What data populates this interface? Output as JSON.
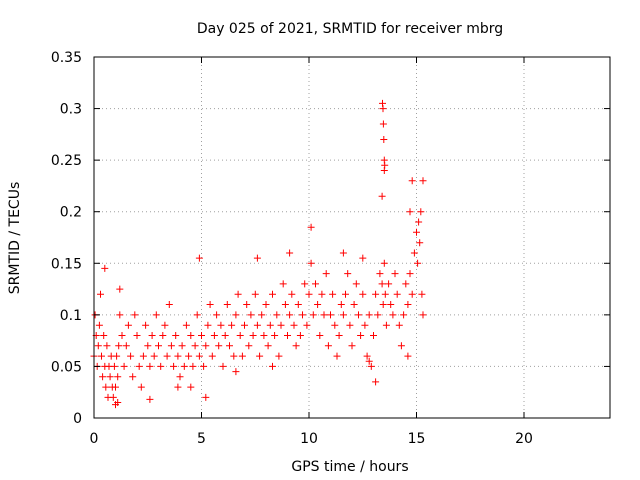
{
  "chart_data": {
    "type": "scatter",
    "title": "Day 025 of 2021, SRMTID for receiver mbrg",
    "xlabel": "GPS time / hours",
    "ylabel": "SRMTID / TECUs",
    "xlim": [
      0,
      24
    ],
    "ylim": [
      0,
      0.35
    ],
    "x_ticks": [
      0,
      5,
      10,
      15,
      20
    ],
    "x_tick_labels": [
      "0",
      "5",
      "10",
      "15",
      "20"
    ],
    "y_ticks": [
      0,
      0.05,
      0.1,
      0.15,
      0.2,
      0.25,
      0.3,
      0.35
    ],
    "y_tick_labels": [
      "0",
      "0.05",
      "0.1",
      "0.15",
      "0.2",
      "0.25",
      "0.3",
      "0.35"
    ],
    "grid": true,
    "marker": "plus",
    "color": "#ff0000",
    "series": [
      {
        "name": "SRMTID",
        "x": [
          0.0,
          0.05,
          0.1,
          0.15,
          0.2,
          0.25,
          0.3,
          0.35,
          0.4,
          0.45,
          0.5,
          0.55,
          0.6,
          0.65,
          0.7,
          0.75,
          0.8,
          0.85,
          0.9,
          0.95,
          1.0,
          1.05,
          1.1,
          1.15,
          1.2,
          1.3,
          1.4,
          1.5,
          1.6,
          1.7,
          1.8,
          1.9,
          2.0,
          2.1,
          2.2,
          2.3,
          2.4,
          2.5,
          2.6,
          2.7,
          2.8,
          2.9,
          3.0,
          3.1,
          3.2,
          3.3,
          3.4,
          3.5,
          3.6,
          3.7,
          3.8,
          3.9,
          4.0,
          4.1,
          4.2,
          4.3,
          4.4,
          4.5,
          4.6,
          4.7,
          4.8,
          4.9,
          5.0,
          5.1,
          5.2,
          5.3,
          5.4,
          5.5,
          5.6,
          5.7,
          5.8,
          5.9,
          6.0,
          6.1,
          6.2,
          6.3,
          6.4,
          6.5,
          6.6,
          6.7,
          6.8,
          6.9,
          7.0,
          7.1,
          7.2,
          7.3,
          7.4,
          7.5,
          7.6,
          7.7,
          7.8,
          7.9,
          8.0,
          8.1,
          8.2,
          8.3,
          8.4,
          8.5,
          8.6,
          8.7,
          8.8,
          8.9,
          9.0,
          9.1,
          9.2,
          9.3,
          9.4,
          9.5,
          9.6,
          9.7,
          9.8,
          9.9,
          10.0,
          10.1,
          10.2,
          10.3,
          10.4,
          10.5,
          10.6,
          10.7,
          10.8,
          10.9,
          11.0,
          11.1,
          11.2,
          11.3,
          11.4,
          11.5,
          11.6,
          11.7,
          11.8,
          11.9,
          12.0,
          12.1,
          12.2,
          12.3,
          12.4,
          12.5,
          12.6,
          12.7,
          12.8,
          12.9,
          13.0,
          13.1,
          13.2,
          13.3,
          13.4,
          13.45,
          13.5,
          13.55,
          13.6,
          13.7,
          13.8,
          13.9,
          14.0,
          14.1,
          14.2,
          14.3,
          14.4,
          14.5,
          14.6,
          14.7,
          14.8,
          14.9,
          15.0,
          15.05,
          15.1,
          15.15,
          15.2,
          15.25,
          15.3,
          13.42,
          13.44,
          13.46,
          13.48,
          13.5,
          13.52,
          13.4,
          13.5,
          0.5,
          1.2,
          4.9,
          7.6,
          9.1,
          10.1,
          11.6,
          14.8,
          14.7,
          14.6,
          15.3,
          1.0,
          1.1,
          4.5,
          5.2,
          6.6,
          8.3,
          2.6,
          3.9,
          12.5,
          12.8,
          13.1
        ],
        "y": [
          0.06,
          0.1,
          0.08,
          0.05,
          0.07,
          0.09,
          0.12,
          0.06,
          0.04,
          0.08,
          0.05,
          0.03,
          0.07,
          0.02,
          0.05,
          0.04,
          0.06,
          0.03,
          0.02,
          0.05,
          0.03,
          0.06,
          0.04,
          0.07,
          0.1,
          0.08,
          0.05,
          0.07,
          0.09,
          0.06,
          0.04,
          0.1,
          0.08,
          0.05,
          0.03,
          0.06,
          0.09,
          0.07,
          0.05,
          0.08,
          0.06,
          0.1,
          0.07,
          0.05,
          0.08,
          0.09,
          0.06,
          0.11,
          0.07,
          0.05,
          0.08,
          0.06,
          0.04,
          0.07,
          0.05,
          0.09,
          0.06,
          0.08,
          0.05,
          0.07,
          0.1,
          0.06,
          0.08,
          0.05,
          0.07,
          0.09,
          0.11,
          0.06,
          0.08,
          0.1,
          0.07,
          0.09,
          0.05,
          0.08,
          0.11,
          0.07,
          0.09,
          0.06,
          0.1,
          0.12,
          0.08,
          0.06,
          0.09,
          0.11,
          0.07,
          0.1,
          0.08,
          0.12,
          0.09,
          0.06,
          0.1,
          0.08,
          0.11,
          0.07,
          0.09,
          0.12,
          0.08,
          0.1,
          0.06,
          0.09,
          0.13,
          0.11,
          0.08,
          0.1,
          0.12,
          0.09,
          0.07,
          0.11,
          0.08,
          0.1,
          0.13,
          0.09,
          0.12,
          0.15,
          0.1,
          0.13,
          0.11,
          0.08,
          0.12,
          0.1,
          0.14,
          0.07,
          0.1,
          0.12,
          0.09,
          0.06,
          0.08,
          0.11,
          0.1,
          0.12,
          0.14,
          0.09,
          0.07,
          0.11,
          0.13,
          0.1,
          0.08,
          0.12,
          0.09,
          0.06,
          0.1,
          0.05,
          0.08,
          0.12,
          0.1,
          0.14,
          0.13,
          0.11,
          0.15,
          0.12,
          0.09,
          0.13,
          0.11,
          0.1,
          0.14,
          0.12,
          0.09,
          0.07,
          0.1,
          0.13,
          0.11,
          0.14,
          0.12,
          0.16,
          0.18,
          0.15,
          0.19,
          0.17,
          0.2,
          0.12,
          0.1,
          0.305,
          0.3,
          0.285,
          0.27,
          0.25,
          0.245,
          0.215,
          0.24,
          0.145,
          0.125,
          0.155,
          0.155,
          0.16,
          0.185,
          0.16,
          0.23,
          0.2,
          0.06,
          0.23,
          0.013,
          0.015,
          0.03,
          0.02,
          0.045,
          0.05,
          0.018,
          0.03,
          0.155,
          0.055,
          0.035
        ]
      }
    ]
  }
}
